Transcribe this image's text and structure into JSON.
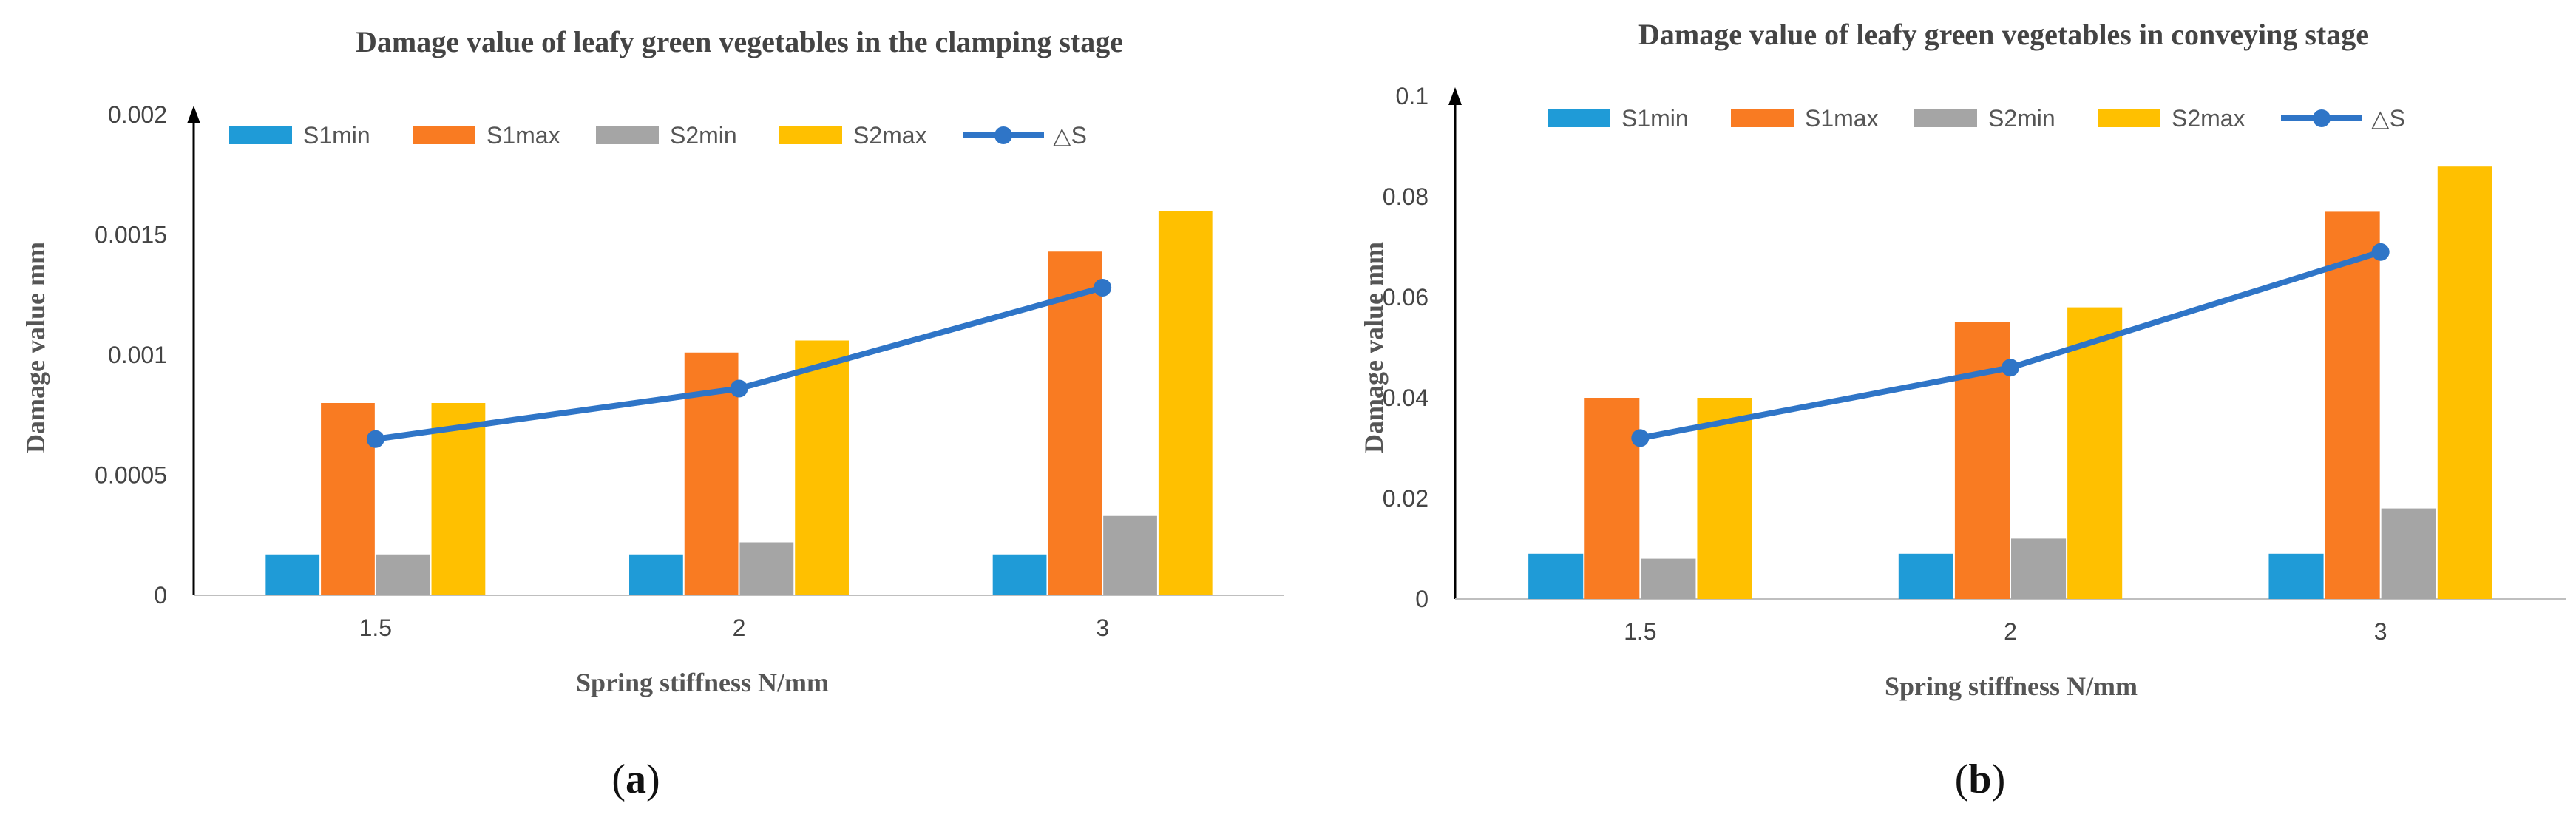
{
  "chart_data": [
    {
      "type": "bar",
      "panel_label": "a",
      "title": "Damage value of leafy green vegetables in the clamping stage",
      "xlabel": "Spring stiffness  N/mm",
      "ylabel": "Damage value  mm",
      "categories": [
        "1.5",
        "2",
        "3"
      ],
      "ylim": [
        0,
        0.002
      ],
      "yticks": [
        0,
        0.0005,
        0.001,
        0.0015,
        0.002
      ],
      "ytick_labels": [
        "0",
        "0.0005",
        "0.001",
        "0.0015",
        "0.002"
      ],
      "series": [
        {
          "name": "S1min",
          "type": "bar",
          "color": "#1f9bd7",
          "values": [
            0.00017,
            0.00017,
            0.00017
          ]
        },
        {
          "name": "S1max",
          "type": "bar",
          "color": "#f97b22",
          "values": [
            0.0008,
            0.00101,
            0.00143
          ]
        },
        {
          "name": "S2min",
          "type": "bar",
          "color": "#a5a5a5",
          "values": [
            0.00017,
            0.00022,
            0.00033
          ]
        },
        {
          "name": "S2max",
          "type": "bar",
          "color": "#ffc000",
          "values": [
            0.0008,
            0.00106,
            0.0016
          ]
        },
        {
          "name": "△S",
          "type": "line",
          "color": "#2f75c7",
          "values": [
            0.00065,
            0.00086,
            0.00128
          ]
        }
      ],
      "legend": "top"
    },
    {
      "type": "bar",
      "panel_label": "b",
      "title": "Damage value of leafy green vegetables in conveying stage",
      "xlabel": "Spring stiffness  N/mm",
      "ylabel": "Damage value  mm",
      "categories": [
        "1.5",
        "2",
        "3"
      ],
      "ylim": [
        0,
        0.1
      ],
      "yticks": [
        0,
        0.02,
        0.04,
        0.06,
        0.08,
        0.1
      ],
      "ytick_labels": [
        "0",
        "0.02",
        "0.04",
        "0.06",
        "0.08",
        "0.1"
      ],
      "series": [
        {
          "name": "S1min",
          "type": "bar",
          "color": "#1f9bd7",
          "values": [
            0.009,
            0.009,
            0.009
          ]
        },
        {
          "name": "S1max",
          "type": "bar",
          "color": "#f97b22",
          "values": [
            0.04,
            0.055,
            0.077
          ]
        },
        {
          "name": "S2min",
          "type": "bar",
          "color": "#a5a5a5",
          "values": [
            0.008,
            0.012,
            0.018
          ]
        },
        {
          "name": "S2max",
          "type": "bar",
          "color": "#ffc000",
          "values": [
            0.04,
            0.058,
            0.086
          ]
        },
        {
          "name": "△S",
          "type": "line",
          "color": "#2f75c7",
          "values": [
            0.032,
            0.046,
            0.069
          ]
        }
      ],
      "legend": "top"
    }
  ]
}
